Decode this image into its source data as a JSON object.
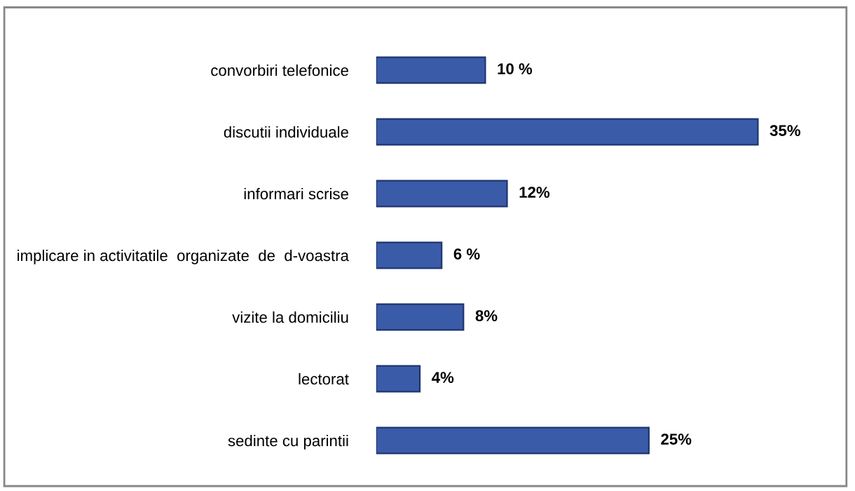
{
  "chart_data": {
    "type": "bar",
    "orientation": "horizontal",
    "categories": [
      "convorbiri telefonice",
      "discutii individuale",
      "informari scrise",
      "implicare in activitatile  organizate  de  d-voastra",
      "vizite la domiciliu",
      "lectorat",
      "sedinte cu parintii"
    ],
    "values": [
      10,
      35,
      12,
      6,
      8,
      4,
      25
    ],
    "value_labels": [
      "10 %",
      "35%",
      "12%",
      "6 %",
      "8%",
      "4%",
      "25%"
    ],
    "color": "#3a5ba8",
    "grid": false,
    "legend": false
  }
}
